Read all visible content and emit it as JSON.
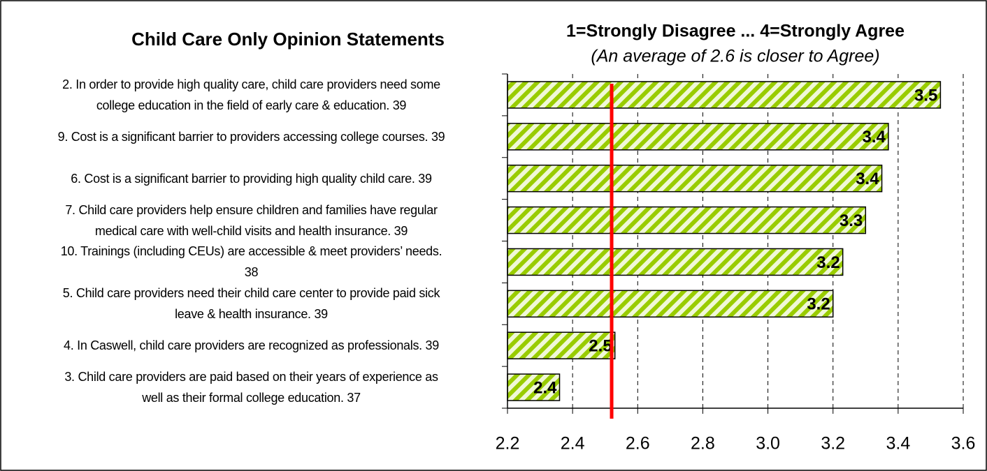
{
  "chart_data": {
    "type": "hbar",
    "title": "Child Care Only Opinion Statements",
    "subtitle": "1=Strongly Disagree ... 4=Strongly Agree",
    "note": "(An average of 2.6 is closer to Agree)",
    "categories": [
      "2. In order to provide high quality care, child care providers need some\ncollege education in the field of early care & education.  39",
      "9. Cost is a significant barrier to providers accessing college courses. 39",
      "6. Cost is a significant barrier to providing high quality child care. 39",
      "7. Child care providers help ensure children and families have regular\nmedical care with well-child visits and health insurance. 39",
      "10. Trainings (including CEUs) are accessible & meet providers’ needs.\n38",
      "5. Child care providers need their child care center to provide paid sick\nleave & health insurance. 39",
      "4. In Caswell, child care providers are recognized as professionals. 39",
      "3. Child care providers are paid based on their years of experience as\nwell as their formal college education.   37"
    ],
    "values": [
      3.53,
      3.37,
      3.35,
      3.3,
      3.23,
      3.2,
      2.53,
      2.36
    ],
    "value_labels": [
      "3.5",
      "3.4",
      "3.4",
      "3.3",
      "3.2",
      "3.2",
      "2.5",
      "2.4"
    ],
    "color": "#99cc00",
    "reference_line": 2.52,
    "reference_color": "#ff0000",
    "xlim": [
      2.2,
      3.6
    ],
    "xticks": [
      2.2,
      2.4,
      2.6,
      2.8,
      {
        "value": 3.0,
        "label": "3.0"
      },
      3.2,
      3.4,
      3.6
    ],
    "grid": true
  }
}
